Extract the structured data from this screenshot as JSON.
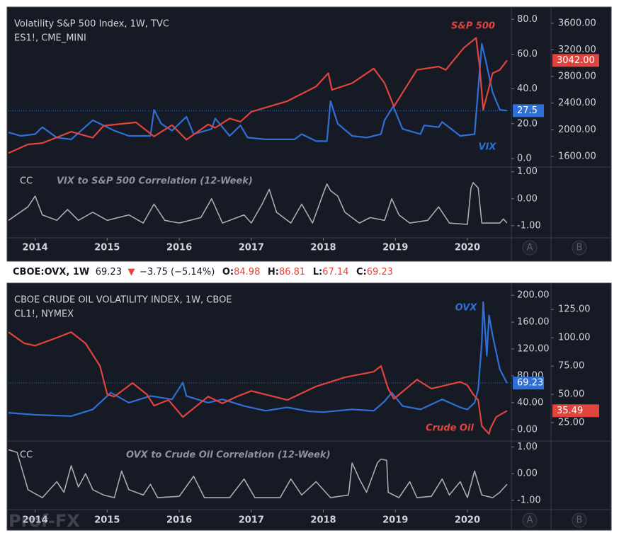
{
  "info": {
    "symbol": "CBOE:OVX, 1W",
    "last": 69.23,
    "arrow": "▼",
    "change": "−3.75 (−5.14%)",
    "open_label": "O:",
    "open": 84.98,
    "high_label": "H:",
    "high": 86.81,
    "low_label": "L:",
    "low": 67.14,
    "close_label": "C:",
    "close": 69.23
  },
  "watermark": "Prof-FX",
  "chart_data": [
    {
      "type": "line",
      "title": "Volatility S&P 500 Index, 1W, TVC",
      "subtitle": "ES1!, CME_MINI",
      "xlim": [
        2013.63,
        2020.61
      ],
      "xticks": [
        2014,
        2015,
        2016,
        2017,
        2018,
        2019,
        2020
      ],
      "ylim": [
        -4.5,
        85
      ],
      "yticks": [
        {
          "value": 0,
          "label": "0.0"
        },
        {
          "value": 20,
          "label": "20.0"
        },
        {
          "value": 40,
          "label": "40.0"
        },
        {
          "value": 60,
          "label": "60.0"
        },
        {
          "value": 80,
          "label": "80.0"
        }
      ],
      "y2lim": [
        1450,
        3790
      ],
      "y2ticks": [
        {
          "value": 1600,
          "label": "1600.00"
        },
        {
          "value": 2000,
          "label": "2000.00"
        },
        {
          "value": 2400,
          "label": "2400.00"
        },
        {
          "value": 2800,
          "label": "2800.00"
        },
        {
          "value": 3200,
          "label": "3200.00"
        },
        {
          "value": 3600,
          "label": "3600.00"
        }
      ],
      "series": [
        {
          "name": "VIX",
          "color": "#2f6fd6",
          "tag": 27.5,
          "x": [
            2013.63,
            2013.8,
            2014.0,
            2014.1,
            2014.3,
            2014.5,
            2014.8,
            2014.95,
            2015.1,
            2015.3,
            2015.6,
            2015.65,
            2015.75,
            2015.9,
            2016.1,
            2016.2,
            2016.45,
            2016.5,
            2016.7,
            2016.85,
            2016.95,
            2017.2,
            2017.6,
            2017.7,
            2017.9,
            2018.05,
            2018.1,
            2018.2,
            2018.4,
            2018.6,
            2018.8,
            2018.85,
            2018.97,
            2019.1,
            2019.35,
            2019.4,
            2019.6,
            2019.65,
            2019.9,
            2020.1,
            2020.15,
            2020.2,
            2020.25,
            2020.35,
            2020.45,
            2020.55
          ],
          "values": [
            15,
            13,
            14,
            18,
            12,
            11,
            22,
            19,
            16,
            13,
            13,
            28,
            20,
            16,
            24,
            14,
            17,
            23,
            13,
            19,
            12,
            11,
            11,
            14,
            10,
            10,
            33,
            20,
            13,
            12,
            14,
            22,
            30,
            17,
            14,
            19,
            18,
            21,
            13,
            14,
            40,
            66,
            57,
            38,
            28,
            27.5
          ]
        },
        {
          "name": "S&P 500",
          "color": "#e0443c",
          "axis": "y2",
          "tag": {
            "value": 3042,
            "label": "3042.00"
          },
          "x": [
            2013.63,
            2013.9,
            2014.1,
            2014.5,
            2014.8,
            2014.95,
            2015.4,
            2015.65,
            2015.9,
            2016.1,
            2016.4,
            2016.5,
            2016.7,
            2016.85,
            2017.0,
            2017.5,
            2017.9,
            2018.07,
            2018.12,
            2018.4,
            2018.7,
            2018.85,
            2018.98,
            2019.3,
            2019.6,
            2019.7,
            2019.95,
            2020.12,
            2020.17,
            2020.22,
            2020.35,
            2020.45,
            2020.55
          ],
          "values": [
            1650,
            1780,
            1800,
            1970,
            1880,
            2060,
            2110,
            1900,
            2070,
            1850,
            2080,
            2030,
            2170,
            2120,
            2270,
            2430,
            2650,
            2850,
            2600,
            2700,
            2920,
            2700,
            2350,
            2900,
            2950,
            2900,
            3230,
            3380,
            2950,
            2300,
            2850,
            2900,
            3042
          ]
        }
      ],
      "indicator": {
        "label": "CC",
        "title": "VIX to S&P 500 Correlation (12-Week)",
        "ylim": [
          -1.45,
          1.15
        ],
        "yticks": [
          {
            "value": -1,
            "label": "-1.00"
          },
          {
            "value": 0,
            "label": "0.00"
          },
          {
            "value": 1,
            "label": "1.00"
          }
        ],
        "color": "#a8abb3",
        "x": [
          2013.63,
          2013.9,
          2014.0,
          2014.1,
          2014.3,
          2014.45,
          2014.6,
          2014.8,
          2015.0,
          2015.3,
          2015.5,
          2015.65,
          2015.8,
          2016.0,
          2016.3,
          2016.45,
          2016.6,
          2016.9,
          2017.0,
          2017.15,
          2017.25,
          2017.35,
          2017.55,
          2017.7,
          2017.85,
          2018.0,
          2018.05,
          2018.1,
          2018.2,
          2018.3,
          2018.5,
          2018.65,
          2018.85,
          2018.95,
          2019.05,
          2019.2,
          2019.45,
          2019.6,
          2019.75,
          2020.0,
          2020.05,
          2020.08,
          2020.15,
          2020.2,
          2020.45,
          2020.5,
          2020.55
        ],
        "values": [
          -0.8,
          -0.3,
          0.1,
          -0.6,
          -0.8,
          -0.4,
          -0.8,
          -0.5,
          -0.8,
          -0.6,
          -0.9,
          -0.2,
          -0.8,
          -0.9,
          -0.7,
          0.0,
          -0.9,
          -0.6,
          -0.9,
          -0.2,
          0.35,
          -0.5,
          -0.9,
          -0.2,
          -0.9,
          0.2,
          0.55,
          0.3,
          0.1,
          -0.5,
          -0.9,
          -0.7,
          -0.8,
          0.0,
          -0.6,
          -0.9,
          -0.8,
          -0.3,
          -0.9,
          -0.95,
          0.4,
          0.6,
          0.4,
          -0.9,
          -0.9,
          -0.75,
          -0.9
        ]
      },
      "buttons": [
        "A",
        "B"
      ]
    },
    {
      "type": "line",
      "title": "CBOE CRUDE OIL VOLATILITY INDEX, 1W, CBOE",
      "subtitle": "CL1!, NYMEX",
      "xlim": [
        2013.63,
        2020.61
      ],
      "xticks": [
        2014,
        2015,
        2016,
        2017,
        2018,
        2019,
        2020
      ],
      "ylim": [
        -16,
        216
      ],
      "yticks": [
        {
          "value": 0,
          "label": "0.00"
        },
        {
          "value": 40,
          "label": "40.00"
        },
        {
          "value": 80,
          "label": "80.00"
        },
        {
          "value": 120,
          "label": "120.00"
        },
        {
          "value": 160,
          "label": "160.00"
        },
        {
          "value": 200,
          "label": "200.00"
        }
      ],
      "y2lim": [
        9.4,
        147
      ],
      "y2ticks": [
        {
          "value": 25,
          "label": "25.00"
        },
        {
          "value": 50,
          "label": "50.00"
        },
        {
          "value": 75,
          "label": "75.00"
        },
        {
          "value": 100,
          "label": "100.00"
        },
        {
          "value": 125,
          "label": "125.00"
        }
      ],
      "series": [
        {
          "name": "OVX",
          "color": "#2f6fd6",
          "tag": 69.23,
          "x": [
            2013.63,
            2014.0,
            2014.5,
            2014.8,
            2015.0,
            2015.05,
            2015.3,
            2015.6,
            2015.9,
            2016.05,
            2016.1,
            2016.4,
            2016.6,
            2016.9,
            2017.2,
            2017.5,
            2017.8,
            2018.0,
            2018.4,
            2018.7,
            2018.85,
            2018.95,
            2019.1,
            2019.35,
            2019.65,
            2019.9,
            2020.0,
            2020.1,
            2020.15,
            2020.2,
            2020.22,
            2020.27,
            2020.3,
            2020.35,
            2020.45,
            2020.55
          ],
          "values": [
            25,
            22,
            20,
            30,
            50,
            55,
            40,
            50,
            45,
            70,
            50,
            40,
            45,
            35,
            28,
            33,
            27,
            26,
            30,
            28,
            42,
            55,
            35,
            30,
            45,
            33,
            30,
            40,
            60,
            130,
            190,
            110,
            170,
            140,
            90,
            69.23
          ]
        },
        {
          "name": "Crude Oil",
          "color": "#e0443c",
          "axis": "y2",
          "tag": 35.49,
          "x": [
            2013.63,
            2013.85,
            2014.0,
            2014.3,
            2014.5,
            2014.7,
            2014.9,
            2015.0,
            2015.1,
            2015.35,
            2015.55,
            2015.65,
            2015.85,
            2016.05,
            2016.4,
            2016.6,
            2016.8,
            2017.0,
            2017.5,
            2017.9,
            2018.3,
            2018.7,
            2018.8,
            2018.9,
            2018.98,
            2019.3,
            2019.5,
            2019.9,
            2020.0,
            2020.08,
            2020.15,
            2020.2,
            2020.3,
            2020.32,
            2020.4,
            2020.55
          ],
          "values": [
            105,
            95,
            93,
            100,
            105,
            95,
            75,
            50,
            48,
            60,
            50,
            40,
            45,
            30,
            48,
            42,
            48,
            53,
            45,
            57,
            65,
            70,
            75,
            55,
            46,
            63,
            55,
            61,
            58,
            50,
            45,
            22,
            15,
            20,
            30,
            35.49
          ]
        }
      ],
      "indicator": {
        "label": "CC",
        "title": "OVX to Crude Oil Correlation (12-Week)",
        "ylim": [
          -1.35,
          1.2
        ],
        "yticks": [
          {
            "value": -1,
            "label": "-1.00"
          },
          {
            "value": 0,
            "label": "0.00"
          },
          {
            "value": 1,
            "label": "1.00"
          }
        ],
        "color": "#a8abb3",
        "x": [
          2013.63,
          2013.75,
          2013.9,
          2014.1,
          2014.3,
          2014.4,
          2014.5,
          2014.6,
          2014.7,
          2014.8,
          2014.95,
          2015.1,
          2015.2,
          2015.3,
          2015.5,
          2015.6,
          2015.7,
          2016.0,
          2016.2,
          2016.35,
          2016.7,
          2016.9,
          2017.05,
          2017.4,
          2017.55,
          2017.7,
          2017.9,
          2018.1,
          2018.35,
          2018.4,
          2018.5,
          2018.6,
          2018.75,
          2018.8,
          2018.88,
          2018.9,
          2019.05,
          2019.2,
          2019.3,
          2019.5,
          2019.65,
          2019.75,
          2019.9,
          2020.0,
          2020.1,
          2020.2,
          2020.35,
          2020.45,
          2020.55
        ],
        "values": [
          0.9,
          0.8,
          -0.6,
          -0.9,
          -0.3,
          -0.7,
          0.3,
          -0.5,
          0.0,
          -0.6,
          -0.8,
          -0.9,
          0.1,
          -0.6,
          -0.8,
          -0.4,
          -0.9,
          -0.85,
          -0.1,
          -0.9,
          -0.9,
          -0.2,
          -0.9,
          -0.9,
          -0.2,
          -0.8,
          -0.3,
          -0.9,
          -0.8,
          0.4,
          -0.2,
          -0.7,
          0.4,
          0.55,
          0.5,
          -0.7,
          -0.9,
          -0.3,
          -0.9,
          -0.85,
          -0.2,
          -0.8,
          -0.3,
          -0.9,
          0.1,
          -0.8,
          -0.9,
          -0.7,
          -0.4
        ]
      },
      "buttons": [
        "A",
        "B"
      ]
    }
  ]
}
